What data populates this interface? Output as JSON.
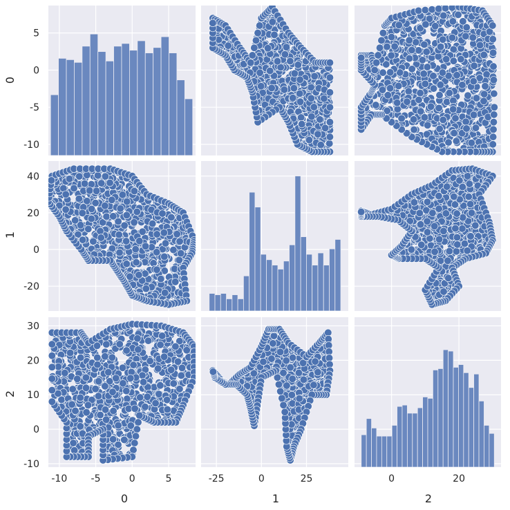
{
  "colors": {
    "background": "#ffffff",
    "panel": "#eaeaf2",
    "grid": "#ffffff",
    "marker_fill": "#4c72b0",
    "marker_edge": "#ffffff",
    "bar_fill": "#6a88bf",
    "text": "#262626"
  },
  "chart_data": {
    "type": "pairplot",
    "variables": [
      "0",
      "1",
      "2"
    ],
    "style": "seaborn darkgrid",
    "grid": true,
    "axis_ranges": {
      "0": [
        -11.5,
        8.7
      ],
      "1": [
        -33.5,
        48.2
      ],
      "2": [
        -11.0,
        32.5
      ]
    },
    "ticks": {
      "0": [
        -10,
        -5,
        0,
        5
      ],
      "1": [
        -20,
        0,
        20,
        40
      ],
      "1_x": [
        -25,
        0,
        25
      ],
      "2": [
        -10,
        0,
        10,
        20,
        30
      ],
      "2_x": [
        0,
        20
      ]
    },
    "diagonal_histograms": [
      {
        "variable": "0",
        "bin_range": [
          -11.2,
          8.3
        ],
        "relative_counts": [
          0.45,
          0.72,
          0.71,
          0.69,
          0.81,
          0.9,
          0.77,
          0.7,
          0.81,
          0.83,
          0.78,
          0.85,
          0.76,
          0.8,
          0.88,
          0.76,
          0.56,
          0.42
        ]
      },
      {
        "variable": "1",
        "bin_range": [
          -29.0,
          44.0
        ],
        "relative_counts": [
          0.13,
          0.12,
          0.13,
          0.09,
          0.12,
          0.09,
          0.26,
          0.88,
          0.77,
          0.42,
          0.38,
          0.34,
          0.31,
          0.37,
          0.49,
          1.0,
          0.55,
          0.42,
          0.34,
          0.43,
          0.34,
          0.46,
          0.53
        ]
      },
      {
        "variable": "2",
        "bin_range": [
          -9.0,
          30.5
        ],
        "relative_counts": [
          0.24,
          0.36,
          0.29,
          0.23,
          0.23,
          0.23,
          0.31,
          0.45,
          0.46,
          0.4,
          0.4,
          0.44,
          0.52,
          0.51,
          0.72,
          0.73,
          0.87,
          0.86,
          0.74,
          0.76,
          0.7,
          0.59,
          0.69,
          0.49,
          0.31,
          0.25
        ]
      }
    ],
    "scatter_shapes": {
      "0_vs_1": [
        [
          -11,
          40
        ],
        [
          -8,
          44
        ],
        [
          -3,
          44
        ],
        [
          0,
          40
        ],
        [
          2,
          30
        ],
        [
          5,
          25
        ],
        [
          7,
          20
        ],
        [
          8.5,
          5
        ],
        [
          8.2,
          -2
        ],
        [
          7,
          -10
        ],
        [
          7.5,
          -28
        ],
        [
          5,
          -30
        ],
        [
          2,
          -28
        ],
        [
          0,
          -25
        ],
        [
          -1,
          -18
        ],
        [
          -2,
          -12
        ],
        [
          -3,
          -6
        ],
        [
          -6,
          -6
        ],
        [
          -7,
          0
        ],
        [
          -9,
          10
        ],
        [
          -10,
          18
        ],
        [
          -11.5,
          26
        ]
      ],
      "0_vs_2": [
        [
          -11,
          28
        ],
        [
          -7,
          28
        ],
        [
          -6,
          25
        ],
        [
          -3,
          29
        ],
        [
          0,
          30.5
        ],
        [
          4,
          30
        ],
        [
          7,
          28
        ],
        [
          8.5,
          24
        ],
        [
          8.5,
          15
        ],
        [
          7,
          7
        ],
        [
          6,
          2
        ],
        [
          3,
          2
        ],
        [
          1,
          4
        ],
        [
          0,
          -8
        ],
        [
          -4,
          -9
        ],
        [
          -4,
          0
        ],
        [
          -6,
          -2
        ],
        [
          -6,
          -8
        ],
        [
          -9,
          -8
        ],
        [
          -9,
          2
        ],
        [
          -11,
          8
        ]
      ],
      "1_vs_0": [
        [
          -27,
          7
        ],
        [
          -20,
          6
        ],
        [
          -12,
          3
        ],
        [
          -6,
          1
        ],
        [
          0,
          7
        ],
        [
          6,
          8.5
        ],
        [
          15,
          5
        ],
        [
          22,
          3
        ],
        [
          30,
          1
        ],
        [
          38,
          1
        ],
        [
          38,
          -11
        ],
        [
          28,
          -11
        ],
        [
          20,
          -10
        ],
        [
          15,
          -7
        ],
        [
          10,
          -5
        ],
        [
          -2,
          -7
        ],
        [
          -5,
          -3
        ],
        [
          -8,
          -1
        ],
        [
          -15,
          0
        ],
        [
          -20,
          2
        ],
        [
          -27,
          3
        ]
      ],
      "1_vs_2": [
        [
          -27,
          17
        ],
        [
          -22,
          14
        ],
        [
          -18,
          13
        ],
        [
          -12,
          16
        ],
        [
          -6,
          18
        ],
        [
          0,
          24
        ],
        [
          4,
          29
        ],
        [
          10,
          29
        ],
        [
          15,
          25
        ],
        [
          25,
          21
        ],
        [
          32,
          25
        ],
        [
          37,
          28
        ],
        [
          38,
          17
        ],
        [
          36,
          10
        ],
        [
          28,
          10
        ],
        [
          22,
          0
        ],
        [
          18,
          -5
        ],
        [
          16,
          -9
        ],
        [
          14,
          -5
        ],
        [
          13,
          5
        ],
        [
          8,
          17
        ],
        [
          0,
          15
        ],
        [
          -2,
          8
        ],
        [
          -4,
          1
        ],
        [
          -6,
          6
        ],
        [
          -8,
          10
        ],
        [
          -14,
          13
        ],
        [
          -20,
          13
        ],
        [
          -26,
          15
        ]
      ],
      "2_vs_0": [
        [
          -9,
          2
        ],
        [
          -6,
          2
        ],
        [
          -5,
          0
        ],
        [
          -2,
          6
        ],
        [
          0,
          7
        ],
        [
          8,
          8
        ],
        [
          20,
          8.5
        ],
        [
          27,
          8
        ],
        [
          30,
          6
        ],
        [
          30.5,
          -5
        ],
        [
          30,
          -11
        ],
        [
          25,
          -11
        ],
        [
          15,
          -11
        ],
        [
          6,
          -9
        ],
        [
          -3,
          -6
        ],
        [
          -6,
          -6
        ],
        [
          -9,
          -8
        ],
        [
          -9,
          -5
        ],
        [
          -6,
          -3
        ],
        [
          -5,
          -2
        ],
        [
          -9,
          0
        ]
      ],
      "2_vs_1": [
        [
          -9,
          21
        ],
        [
          -6,
          19
        ],
        [
          0,
          22
        ],
        [
          6,
          30
        ],
        [
          12,
          35
        ],
        [
          18,
          43
        ],
        [
          24,
          44
        ],
        [
          30,
          40
        ],
        [
          26,
          30
        ],
        [
          29,
          15
        ],
        [
          30,
          5
        ],
        [
          28,
          -2
        ],
        [
          22,
          -5
        ],
        [
          18,
          -10
        ],
        [
          20,
          -20
        ],
        [
          16,
          -28
        ],
        [
          12,
          -30
        ],
        [
          10,
          -22
        ],
        [
          14,
          -10
        ],
        [
          10,
          -5
        ],
        [
          2,
          -5
        ],
        [
          0,
          -3
        ],
        [
          3,
          2
        ],
        [
          6,
          10
        ],
        [
          2,
          16
        ],
        [
          -4,
          18
        ],
        [
          -9,
          18
        ]
      ]
    },
    "x_labels": [
      "0",
      "1",
      "2"
    ],
    "y_labels": [
      "0",
      "1",
      "2"
    ]
  }
}
